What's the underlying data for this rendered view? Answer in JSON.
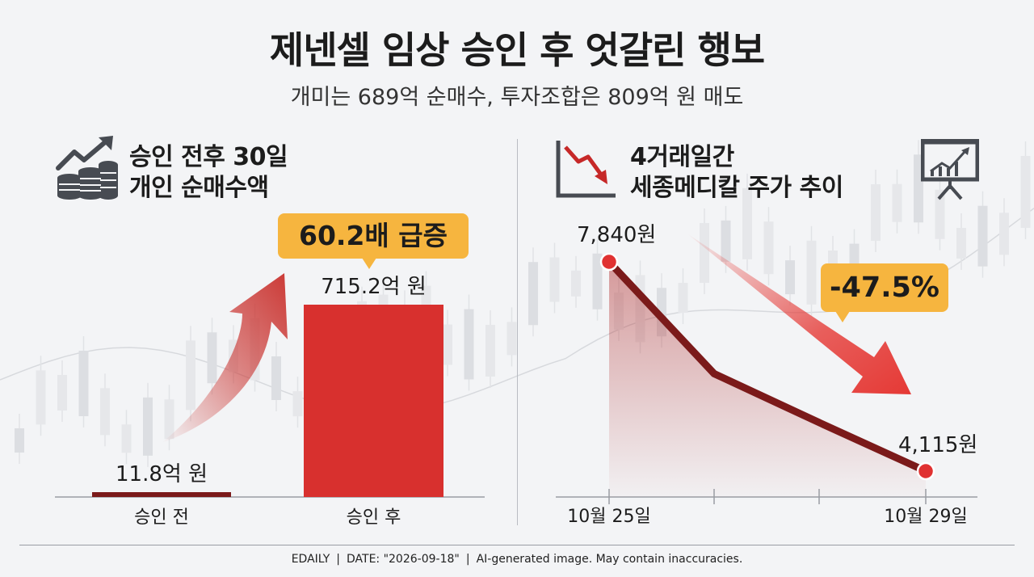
{
  "header": {
    "title": "제넨셀 임상 승인 후 엇갈린 행보",
    "subtitle": "개미는 689억 순매수, 투자조합은 809억 원 매도"
  },
  "left_panel": {
    "heading_line1": "승인 전후 30일",
    "heading_line2": "개인 순매수액",
    "icon": "coins-growth-icon",
    "callout": "60.2배 급증"
  },
  "right_panel": {
    "heading_line1": "4거래일간",
    "heading_line2": "세종메디칼 주가 추이",
    "icon": "declining-chart-icon",
    "icon_right": "presentation-board-icon",
    "callout": "-47.5%"
  },
  "chart_data": [
    {
      "type": "bar",
      "categories": [
        "승인 전",
        "승인 후"
      ],
      "values": [
        11.8,
        715.2
      ],
      "data_labels": [
        "11.8억 원",
        "715.2억 원"
      ],
      "colors": [
        "#7b1a1a",
        "#d8302e"
      ],
      "ylim": [
        0,
        800
      ],
      "annotation": "60.2배 급증"
    },
    {
      "type": "line",
      "x": [
        "10월 25일",
        "",
        "",
        "10월 29일"
      ],
      "values": [
        7840,
        5850,
        4980,
        4115
      ],
      "data_labels": [
        "7,840원",
        "",
        "",
        "4,115원"
      ],
      "line_color": "#7b1a1a",
      "marker_color": "#e03131",
      "ylim": [
        3000,
        8800
      ],
      "annotation": "-47.5%"
    }
  ],
  "footer": {
    "source": "EDAILY",
    "date": "DATE: \"2026-09-18\"",
    "note": "AI-generated image. May contain inaccuracies."
  }
}
